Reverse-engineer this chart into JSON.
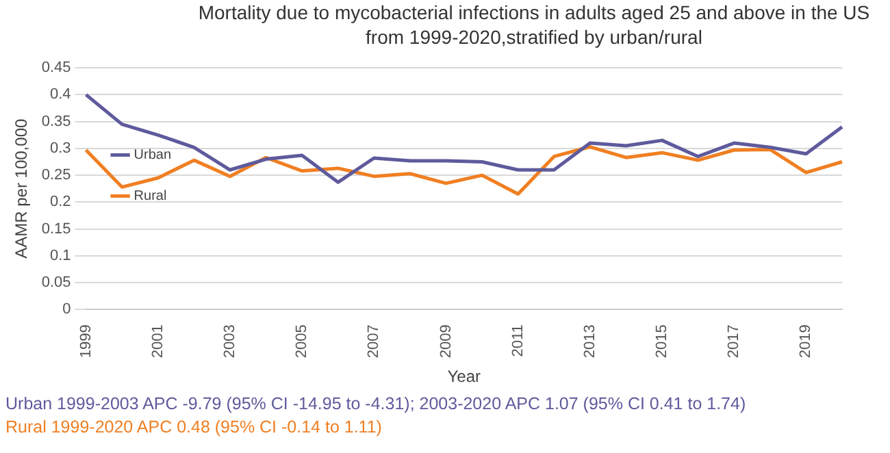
{
  "chart_data": {
    "type": "line",
    "title": "Mortality due to mycobacterial infections in adults aged 25 and above in the US from 1999-2020,stratified by urban/rural",
    "xlabel": "Year",
    "ylabel": "AAMR per 100,000",
    "categories": [
      "1999",
      null,
      "2001",
      null,
      "2003",
      null,
      "2005",
      null,
      "2007",
      null,
      "2009",
      null,
      "2011",
      null,
      "2013",
      null,
      "2015",
      null,
      "2017",
      null,
      "2019",
      null
    ],
    "series": [
      {
        "name": "Urban",
        "color": "#5e5a9c",
        "values": [
          0.4,
          0.345,
          0.325,
          0.302,
          0.26,
          0.28,
          0.287,
          0.237,
          0.282,
          0.277,
          0.277,
          0.275,
          0.26,
          0.26,
          0.31,
          0.305,
          0.315,
          0.285,
          0.31,
          0.302,
          0.29,
          0.34
        ]
      },
      {
        "name": "Rural",
        "color": "#f07f22",
        "values": [
          0.297,
          0.228,
          0.245,
          0.278,
          0.248,
          0.283,
          0.258,
          0.263,
          0.248,
          0.253,
          0.235,
          0.25,
          0.215,
          0.285,
          0.303,
          0.283,
          0.292,
          0.278,
          0.297,
          0.298,
          0.255,
          0.275
        ]
      }
    ],
    "ylim": [
      0,
      0.45
    ],
    "yticks": [
      0,
      0.05,
      0.1,
      0.15,
      0.2,
      0.25,
      0.3,
      0.35,
      0.4,
      0.45
    ],
    "grid": "y",
    "legend": "top",
    "marker": "none",
    "line_style": "solid",
    "annotations": [
      "Urban 1999-2003 APC -9.79 (95% CI -14.95 to -4.31); 2003-2020 APC 1.07 (95% CI 0.41 to 1.74)",
      "Rural 1999-2020 APC 0.48 (95% CI -0.14 to 1.11)"
    ]
  }
}
